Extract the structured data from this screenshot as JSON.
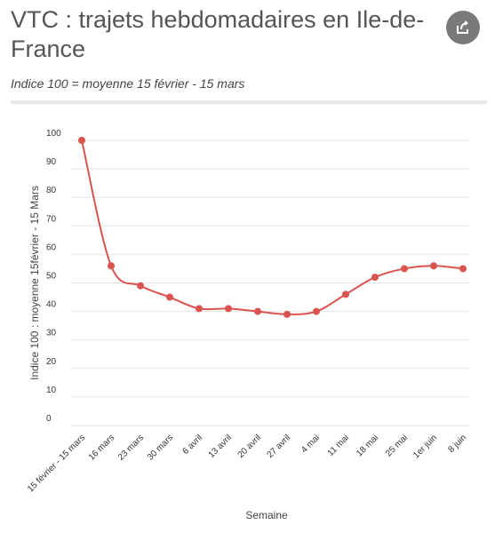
{
  "header": {
    "title": "VTC : trajets hebdomadaires en Ile-de-France",
    "subtitle": "Indice 100 = moyenne 15 février - 15 mars"
  },
  "share_icon": "share-icon",
  "colors": {
    "series": "#d9534f",
    "grid": "#e6e6e6",
    "share_bg": "#7a7a7a"
  },
  "chart_data": {
    "type": "line",
    "title": "VTC : trajets hebdomadaires en Ile-de-France",
    "subtitle": "Indice 100 = moyenne 15 février - 15 mars",
    "xlabel": "Semaine",
    "ylabel": "Indice 100 : moyenne 15février - 15 Mars",
    "ylim": [
      0,
      100
    ],
    "yticks": [
      0,
      10,
      20,
      30,
      40,
      50,
      60,
      70,
      80,
      90,
      100
    ],
    "grid": true,
    "categories": [
      "15 février - 15 mars",
      "16 mars",
      "23 mars",
      "30 mars",
      "6 avril",
      "13 avril",
      "20 avril",
      "27 avril",
      "4 mai",
      "11 mai",
      "18 mai",
      "25 mai",
      "1er juin",
      "8 juin"
    ],
    "series": [
      {
        "values": [
          100,
          56,
          49,
          45,
          41,
          41,
          40,
          39,
          40,
          46,
          52,
          55,
          56,
          55
        ]
      }
    ]
  }
}
